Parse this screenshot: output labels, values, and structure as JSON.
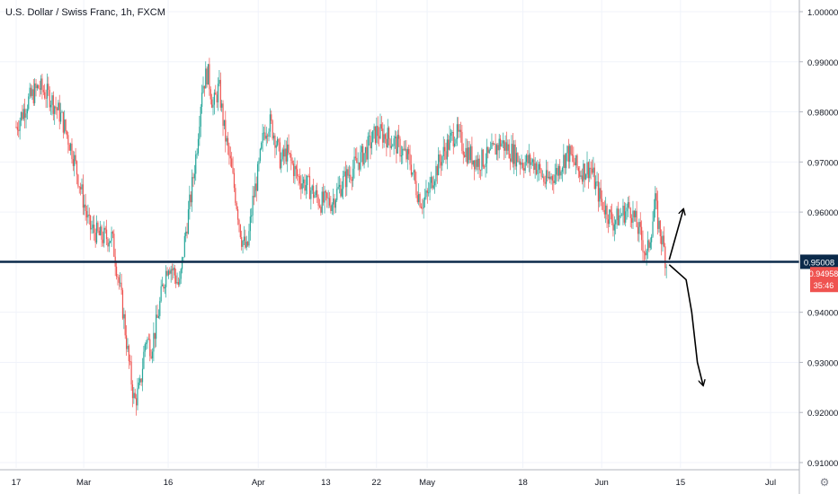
{
  "title": "U.S. Dollar / Swiss Franc, 1h, FXCM",
  "chart_data": {
    "type": "candlestick",
    "title": "U.S. Dollar / Swiss Franc, 1h, FXCM",
    "ylim": [
      0.9075,
      1.0015
    ],
    "y_ticks": [
      1.0,
      0.99,
      0.98,
      0.97,
      0.96,
      0.95,
      0.94,
      0.93,
      0.92,
      0.91
    ],
    "y_tick_labels": [
      "1.00000",
      "0.99000",
      "0.98000",
      "0.97000",
      "0.96000",
      "0.95008",
      "0.94000",
      "0.93000",
      "0.92000",
      "0.91000"
    ],
    "x_ticks": [
      {
        "label": "17",
        "x": 0.0
      },
      {
        "label": "Mar",
        "x": 12
      },
      {
        "label": "16",
        "x": 27
      },
      {
        "label": "Apr",
        "x": 43
      },
      {
        "label": "13",
        "x": 55
      },
      {
        "label": "22",
        "x": 64
      },
      {
        "label": "May",
        "x": 73
      },
      {
        "label": "18",
        "x": 90
      },
      {
        "label": "Jun",
        "x": 104
      },
      {
        "label": "15",
        "x": 118
      },
      {
        "label": "Jul",
        "x": 134
      }
    ],
    "price_path": [
      [
        0,
        0.977
      ],
      [
        2,
        0.982
      ],
      [
        4,
        0.985
      ],
      [
        6,
        0.983
      ],
      [
        8,
        0.979
      ],
      [
        10,
        0.972
      ],
      [
        12,
        0.962
      ],
      [
        13,
        0.957
      ],
      [
        15,
        0.955
      ],
      [
        17,
        0.955
      ],
      [
        18,
        0.948
      ],
      [
        19,
        0.94
      ],
      [
        20,
        0.93
      ],
      [
        21,
        0.922
      ],
      [
        22,
        0.925
      ],
      [
        23,
        0.935
      ],
      [
        24,
        0.933
      ],
      [
        25,
        0.938
      ],
      [
        26,
        0.945
      ],
      [
        27,
        0.95
      ],
      [
        28,
        0.948
      ],
      [
        29,
        0.945
      ],
      [
        30,
        0.955
      ],
      [
        31,
        0.963
      ],
      [
        32,
        0.972
      ],
      [
        33,
        0.985
      ],
      [
        34,
        0.988
      ],
      [
        35,
        0.981
      ],
      [
        36,
        0.985
      ],
      [
        37,
        0.976
      ],
      [
        38,
        0.97
      ],
      [
        39,
        0.963
      ],
      [
        40,
        0.955
      ],
      [
        41,
        0.952
      ],
      [
        42,
        0.962
      ],
      [
        43,
        0.968
      ],
      [
        44,
        0.976
      ],
      [
        45,
        0.978
      ],
      [
        46,
        0.975
      ],
      [
        47,
        0.97
      ],
      [
        48,
        0.972
      ],
      [
        50,
        0.967
      ],
      [
        52,
        0.965
      ],
      [
        54,
        0.962
      ],
      [
        56,
        0.962
      ],
      [
        58,
        0.966
      ],
      [
        60,
        0.969
      ],
      [
        62,
        0.972
      ],
      [
        64,
        0.976
      ],
      [
        66,
        0.975
      ],
      [
        68,
        0.973
      ],
      [
        70,
        0.97
      ],
      [
        71,
        0.965
      ],
      [
        72,
        0.962
      ],
      [
        73,
        0.963
      ],
      [
        74,
        0.967
      ],
      [
        76,
        0.972
      ],
      [
        78,
        0.976
      ],
      [
        80,
        0.972
      ],
      [
        82,
        0.97
      ],
      [
        84,
        0.971
      ],
      [
        86,
        0.974
      ],
      [
        88,
        0.972
      ],
      [
        90,
        0.97
      ],
      [
        92,
        0.97
      ],
      [
        94,
        0.966
      ],
      [
        96,
        0.968
      ],
      [
        98,
        0.972
      ],
      [
        100,
        0.968
      ],
      [
        102,
        0.969
      ],
      [
        103,
        0.965
      ],
      [
        104,
        0.962
      ],
      [
        106,
        0.958
      ],
      [
        108,
        0.96
      ],
      [
        109,
        0.961
      ],
      [
        110,
        0.958
      ],
      [
        111,
        0.955
      ],
      [
        112,
        0.951
      ],
      [
        113,
        0.958
      ],
      [
        113.5,
        0.962
      ],
      [
        114,
        0.958
      ],
      [
        115,
        0.953
      ],
      [
        115.5,
        0.9496
      ]
    ],
    "hline": {
      "value": 0.95008,
      "label": "0.95008"
    },
    "last_price": {
      "value": 0.94958,
      "label": "0.94958",
      "countdown": "35:46"
    },
    "colors": {
      "up": "#26a69a",
      "down": "#ef5350",
      "hline": "#0b2a4a",
      "grid": "#f0f3fa",
      "axis_text": "#131722"
    },
    "annotations": [
      {
        "kind": "arrow-up",
        "from": [
          116,
          0.9505
        ],
        "to": [
          118.5,
          0.9605
        ]
      },
      {
        "kind": "arrow-down-curve",
        "points": [
          [
            116,
            0.9495
          ],
          [
            117,
            0.9485
          ],
          [
            118,
            0.9475
          ],
          [
            119,
            0.9465
          ],
          [
            120,
            0.94
          ],
          [
            121,
            0.93
          ],
          [
            122,
            0.9255
          ]
        ]
      }
    ]
  }
}
